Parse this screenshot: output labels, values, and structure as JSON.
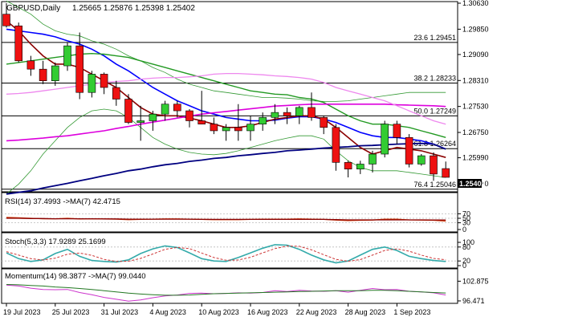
{
  "header": {
    "symbol": "GBPUSD,Daily",
    "ohlc": "1.25665 1.25876 1.25398 1.25402"
  },
  "colors": {
    "bull": "#33cc33",
    "bear": "#ee1111",
    "ma_fast": "#0000ff",
    "ma_mid": "#8b0000",
    "ma_green": "#229922",
    "ma_magenta": "#dd00dd",
    "ma_pink": "#ee88ee",
    "ma_long": "#000080",
    "band": "#339933",
    "rsi": "#cc3300",
    "stoch_main": "#33aaaa",
    "stoch_signal": "#cc3333",
    "momentum": "#cc33cc",
    "momentum_ma": "#227722",
    "price_box_bg": "#000000",
    "price_box_fg": "#ffffff"
  },
  "chart_data": [
    {
      "type": "candlestick",
      "title": "GBPUSD,Daily",
      "ylim": [
        1.2504,
        1.3063
      ],
      "y_ticks": [
        "1.30630",
        "1.29850",
        "1.29090",
        "1.28310",
        "1.27530",
        "1.26750",
        "1.25990",
        "1.25210"
      ],
      "x_labels": [
        "19 Jul 2023",
        "25 Jul 2023",
        "31 Jul 2023",
        "4 Aug 2023",
        "10 Aug 2023",
        "16 Aug 2023",
        "22 Aug 2023",
        "28 Aug 2023",
        "1 Sep 2023"
      ],
      "x_label_bar_index": [
        0,
        4,
        8,
        12,
        16,
        20,
        24,
        28,
        32
      ],
      "last_price": "1.25402",
      "fib_levels": [
        {
          "label": "23.6 1.29451",
          "value": 1.29451
        },
        {
          "label": "38.2 1.28233",
          "value": 1.28233
        },
        {
          "label": "50.0 1.27249",
          "value": 1.27249
        },
        {
          "label": "61.8 1.26264",
          "value": 1.26264
        },
        {
          "label": "76.4 1.25046",
          "value": 1.25046
        }
      ],
      "candles": [
        {
          "o": 1.303,
          "h": 1.3063,
          "l": 1.299,
          "c": 1.2995
        },
        {
          "o": 1.2995,
          "h": 1.3005,
          "l": 1.2885,
          "c": 1.289
        },
        {
          "o": 1.289,
          "h": 1.2905,
          "l": 1.2845,
          "c": 1.2865
        },
        {
          "o": 1.2865,
          "h": 1.289,
          "l": 1.282,
          "c": 1.283
        },
        {
          "o": 1.283,
          "h": 1.2885,
          "l": 1.2815,
          "c": 1.2875
        },
        {
          "o": 1.2875,
          "h": 1.2945,
          "l": 1.286,
          "c": 1.2935
        },
        {
          "o": 1.2935,
          "h": 1.2975,
          "l": 1.2775,
          "c": 1.2795
        },
        {
          "o": 1.2795,
          "h": 1.286,
          "l": 1.278,
          "c": 1.285
        },
        {
          "o": 1.285,
          "h": 1.2855,
          "l": 1.279,
          "c": 1.281
        },
        {
          "o": 1.281,
          "h": 1.283,
          "l": 1.2755,
          "c": 1.2775
        },
        {
          "o": 1.2775,
          "h": 1.279,
          "l": 1.27,
          "c": 1.2705
        },
        {
          "o": 1.2705,
          "h": 1.2755,
          "l": 1.265,
          "c": 1.271
        },
        {
          "o": 1.271,
          "h": 1.274,
          "l": 1.268,
          "c": 1.273
        },
        {
          "o": 1.273,
          "h": 1.277,
          "l": 1.271,
          "c": 1.276
        },
        {
          "o": 1.276,
          "h": 1.277,
          "l": 1.272,
          "c": 1.274
        },
        {
          "o": 1.274,
          "h": 1.2745,
          "l": 1.269,
          "c": 1.271
        },
        {
          "o": 1.271,
          "h": 1.28,
          "l": 1.27,
          "c": 1.27
        },
        {
          "o": 1.27,
          "h": 1.272,
          "l": 1.267,
          "c": 1.268
        },
        {
          "o": 1.268,
          "h": 1.27,
          "l": 1.265,
          "c": 1.269
        },
        {
          "o": 1.269,
          "h": 1.276,
          "l": 1.265,
          "c": 1.268
        },
        {
          "o": 1.268,
          "h": 1.2725,
          "l": 1.265,
          "c": 1.27
        },
        {
          "o": 1.27,
          "h": 1.2735,
          "l": 1.268,
          "c": 1.272
        },
        {
          "o": 1.272,
          "h": 1.276,
          "l": 1.27,
          "c": 1.2735
        },
        {
          "o": 1.2735,
          "h": 1.275,
          "l": 1.27,
          "c": 1.2725
        },
        {
          "o": 1.2725,
          "h": 1.2755,
          "l": 1.27,
          "c": 1.275
        },
        {
          "o": 1.275,
          "h": 1.2795,
          "l": 1.271,
          "c": 1.272
        },
        {
          "o": 1.272,
          "h": 1.2725,
          "l": 1.267,
          "c": 1.269
        },
        {
          "o": 1.269,
          "h": 1.27,
          "l": 1.256,
          "c": 1.2585
        },
        {
          "o": 1.2585,
          "h": 1.259,
          "l": 1.254,
          "c": 1.2565
        },
        {
          "o": 1.2565,
          "h": 1.259,
          "l": 1.255,
          "c": 1.258
        },
        {
          "o": 1.258,
          "h": 1.262,
          "l": 1.2555,
          "c": 1.261
        },
        {
          "o": 1.261,
          "h": 1.271,
          "l": 1.26,
          "c": 1.27
        },
        {
          "o": 1.27,
          "h": 1.271,
          "l": 1.264,
          "c": 1.266
        },
        {
          "o": 1.266,
          "h": 1.267,
          "l": 1.257,
          "c": 1.258
        },
        {
          "o": 1.258,
          "h": 1.261,
          "l": 1.2575,
          "c": 1.2605
        },
        {
          "o": 1.2605,
          "h": 1.2615,
          "l": 1.253,
          "c": 1.255
        },
        {
          "o": 1.25665,
          "h": 1.25876,
          "l": 1.25398,
          "c": 1.25402
        }
      ],
      "series": [
        {
          "style": "ma_fast",
          "values": [
            1.2985,
            1.298,
            1.2975,
            1.297,
            1.2962,
            1.295,
            1.294,
            1.2925,
            1.2905,
            1.288,
            1.286,
            1.2835,
            1.281,
            1.279,
            1.277,
            1.2755,
            1.274,
            1.273,
            1.272,
            1.2715,
            1.271,
            1.271,
            1.2712,
            1.2718,
            1.2722,
            1.2722,
            1.2715,
            1.2705,
            1.269,
            1.2675,
            1.2665,
            1.266,
            1.266,
            1.2655,
            1.265,
            1.264,
            1.2625
          ]
        },
        {
          "style": "ma_mid",
          "values": [
            1.301,
            1.298,
            1.294,
            1.2905,
            1.288,
            1.288,
            1.287,
            1.285,
            1.283,
            1.281,
            1.278,
            1.275,
            1.273,
            1.2725,
            1.2725,
            1.2718,
            1.271,
            1.27,
            1.269,
            1.269,
            1.2695,
            1.2705,
            1.2715,
            1.272,
            1.2725,
            1.2725,
            1.2715,
            1.269,
            1.266,
            1.263,
            1.261,
            1.262,
            1.263,
            1.2625,
            1.262,
            1.261,
            1.26
          ]
        },
        {
          "style": "ma_green",
          "values": [
            1.288,
            1.2885,
            1.289,
            1.2895,
            1.29,
            1.2905,
            1.291,
            1.2912,
            1.291,
            1.2905,
            1.29,
            1.289,
            1.288,
            1.287,
            1.286,
            1.285,
            1.284,
            1.283,
            1.282,
            1.281,
            1.28,
            1.2795,
            1.279,
            1.2788,
            1.278,
            1.2775,
            1.2765,
            1.2745,
            1.2725,
            1.271,
            1.27,
            1.27,
            1.2695,
            1.269,
            1.268,
            1.267,
            1.266
          ]
        },
        {
          "style": "ma_magenta",
          "values": [
            1.265,
            1.2652,
            1.2655,
            1.2658,
            1.2662,
            1.2665,
            1.267,
            1.2675,
            1.268,
            1.2687,
            1.2693,
            1.27,
            1.2706,
            1.2712,
            1.2718,
            1.2724,
            1.273,
            1.2734,
            1.2738,
            1.2742,
            1.2746,
            1.275,
            1.2754,
            1.2756,
            1.2758,
            1.276,
            1.276,
            1.276,
            1.276,
            1.276,
            1.276,
            1.276,
            1.2758,
            1.2757,
            1.2756,
            1.2755,
            1.2753
          ]
        },
        {
          "style": "ma_pink",
          "values": [
            1.279,
            1.2792,
            1.2795,
            1.28,
            1.2805,
            1.281,
            1.2815,
            1.282,
            1.2825,
            1.2828,
            1.283,
            1.2835,
            1.2838,
            1.284,
            1.284,
            1.2842,
            1.2845,
            1.285,
            1.2852,
            1.2852,
            1.285,
            1.2848,
            1.2845,
            1.2843,
            1.284,
            1.2835,
            1.2825,
            1.281,
            1.28,
            1.279,
            1.278,
            1.277,
            1.2755,
            1.274,
            1.2725,
            1.271,
            1.27
          ]
        },
        {
          "style": "ma_long",
          "values": [
            1.249,
            1.2495,
            1.25,
            1.2508,
            1.2515,
            1.2522,
            1.253,
            1.2537,
            1.2545,
            1.2552,
            1.256,
            1.2565,
            1.2572,
            1.2578,
            1.2582,
            1.2588,
            1.2592,
            1.2597,
            1.26,
            1.2605,
            1.2608,
            1.2612,
            1.2615,
            1.262,
            1.2622,
            1.2625,
            1.2628,
            1.263,
            1.2632,
            1.2635,
            1.2636,
            1.2638,
            1.264,
            1.2641,
            1.2642,
            1.264,
            1.2625
          ]
        },
        {
          "style": "band_upper",
          "values": [
            1.307,
            1.305,
            1.303,
            1.3,
            1.298,
            1.297,
            1.2965,
            1.295,
            1.294,
            1.2925,
            1.2905,
            1.289,
            1.287,
            1.2855,
            1.2835,
            1.282,
            1.281,
            1.28,
            1.2795,
            1.279,
            1.2785,
            1.278,
            1.278,
            1.2778,
            1.2775,
            1.277,
            1.2768,
            1.2768,
            1.277,
            1.2775,
            1.278,
            1.2785,
            1.279,
            1.2795,
            1.2795,
            1.2795,
            1.2795
          ]
        },
        {
          "style": "band_lower",
          "values": [
            1.249,
            1.252,
            1.256,
            1.261,
            1.265,
            1.269,
            1.272,
            1.274,
            1.2745,
            1.274,
            1.272,
            1.269,
            1.266,
            1.264,
            1.2625,
            1.2615,
            1.261,
            1.2608,
            1.2612,
            1.262,
            1.263,
            1.264,
            1.265,
            1.2658,
            1.2665,
            1.2665,
            1.2655,
            1.262,
            1.259,
            1.257,
            1.256,
            1.256,
            1.256,
            1.2555,
            1.255,
            1.2545,
            1.254
          ]
        }
      ]
    },
    {
      "type": "line",
      "title": "RSI(14) 37.4993 ->MA(7) 42.4715",
      "ylim": [
        0,
        100
      ],
      "y_ticks": [
        "70",
        "50",
        "30",
        "0"
      ],
      "series": [
        {
          "style": "rsi",
          "values": [
            54,
            52,
            50,
            48,
            48,
            50,
            47,
            48,
            47,
            46,
            44,
            45,
            46,
            47,
            47,
            46,
            45,
            44,
            44,
            44,
            45,
            46,
            46,
            46,
            47,
            46,
            45,
            42,
            40,
            41,
            42,
            46,
            46,
            43,
            42,
            41,
            37.4993
          ]
        },
        {
          "style": "rsi_ma",
          "values": [
            50,
            50,
            49,
            49,
            48,
            48,
            48,
            48,
            47,
            47,
            46,
            46,
            46,
            46,
            46,
            46,
            45,
            45,
            45,
            45,
            45,
            45,
            45,
            45,
            45,
            45,
            45,
            44,
            43,
            43,
            43,
            43,
            43,
            43,
            42.8,
            42.6,
            42.4715
          ]
        }
      ]
    },
    {
      "type": "line",
      "title": "Stoch(5,3,3) 17.9289 25.1699",
      "ylim": [
        0,
        100
      ],
      "y_ticks": [
        "100",
        "80",
        "20",
        "0"
      ],
      "series": [
        {
          "style": "stoch_main",
          "values": [
            55,
            30,
            18,
            25,
            52,
            70,
            40,
            22,
            18,
            15,
            25,
            52,
            72,
            85,
            78,
            55,
            30,
            20,
            18,
            35,
            55,
            75,
            90,
            88,
            70,
            45,
            25,
            12,
            20,
            45,
            70,
            80,
            65,
            40,
            30,
            22,
            17.9289
          ]
        },
        {
          "style": "stoch_signal",
          "values": [
            60,
            45,
            30,
            24,
            32,
            49,
            54,
            44,
            27,
            18,
            19,
            31,
            50,
            70,
            78,
            73,
            54,
            35,
            23,
            24,
            36,
            55,
            73,
            84,
            83,
            68,
            47,
            27,
            19,
            26,
            45,
            65,
            72,
            62,
            45,
            31,
            25.1699
          ]
        }
      ]
    },
    {
      "type": "line",
      "title": "Momentum(14) 98.3877 ->MA(7) 99.0440",
      "ylim": [
        96.2,
        103.5
      ],
      "y_ticks": [
        "102.875",
        "96.471"
      ],
      "series": [
        {
          "style": "momentum",
          "values": [
            101.6,
            101.3,
            100.6,
            100.2,
            100.1,
            100.2,
            99.2,
            98.5,
            97.6,
            97.0,
            96.4,
            96.8,
            97.5,
            98.1,
            98.4,
            98.9,
            99.0,
            98.8,
            98.9,
            99.1,
            99.0,
            99.2,
            99.8,
            99.5,
            99.9,
            99.7,
            99.6,
            99.8,
            99.3,
            99.9,
            100.5,
            100.1,
            100.2,
            99.6,
            99.4,
            99.1,
            98.3877
          ]
        },
        {
          "style": "momentum_ma",
          "values": [
            101.8,
            101.7,
            101.5,
            101.3,
            101.0,
            100.8,
            100.5,
            100.2,
            99.8,
            99.4,
            99.0,
            98.7,
            98.5,
            98.3,
            98.3,
            98.4,
            98.6,
            98.8,
            98.9,
            99.0,
            99.1,
            99.2,
            99.3,
            99.4,
            99.5,
            99.6,
            99.7,
            99.8,
            99.8,
            99.8,
            99.9,
            99.9,
            99.8,
            99.6,
            99.4,
            99.2,
            99.044
          ]
        }
      ]
    }
  ]
}
